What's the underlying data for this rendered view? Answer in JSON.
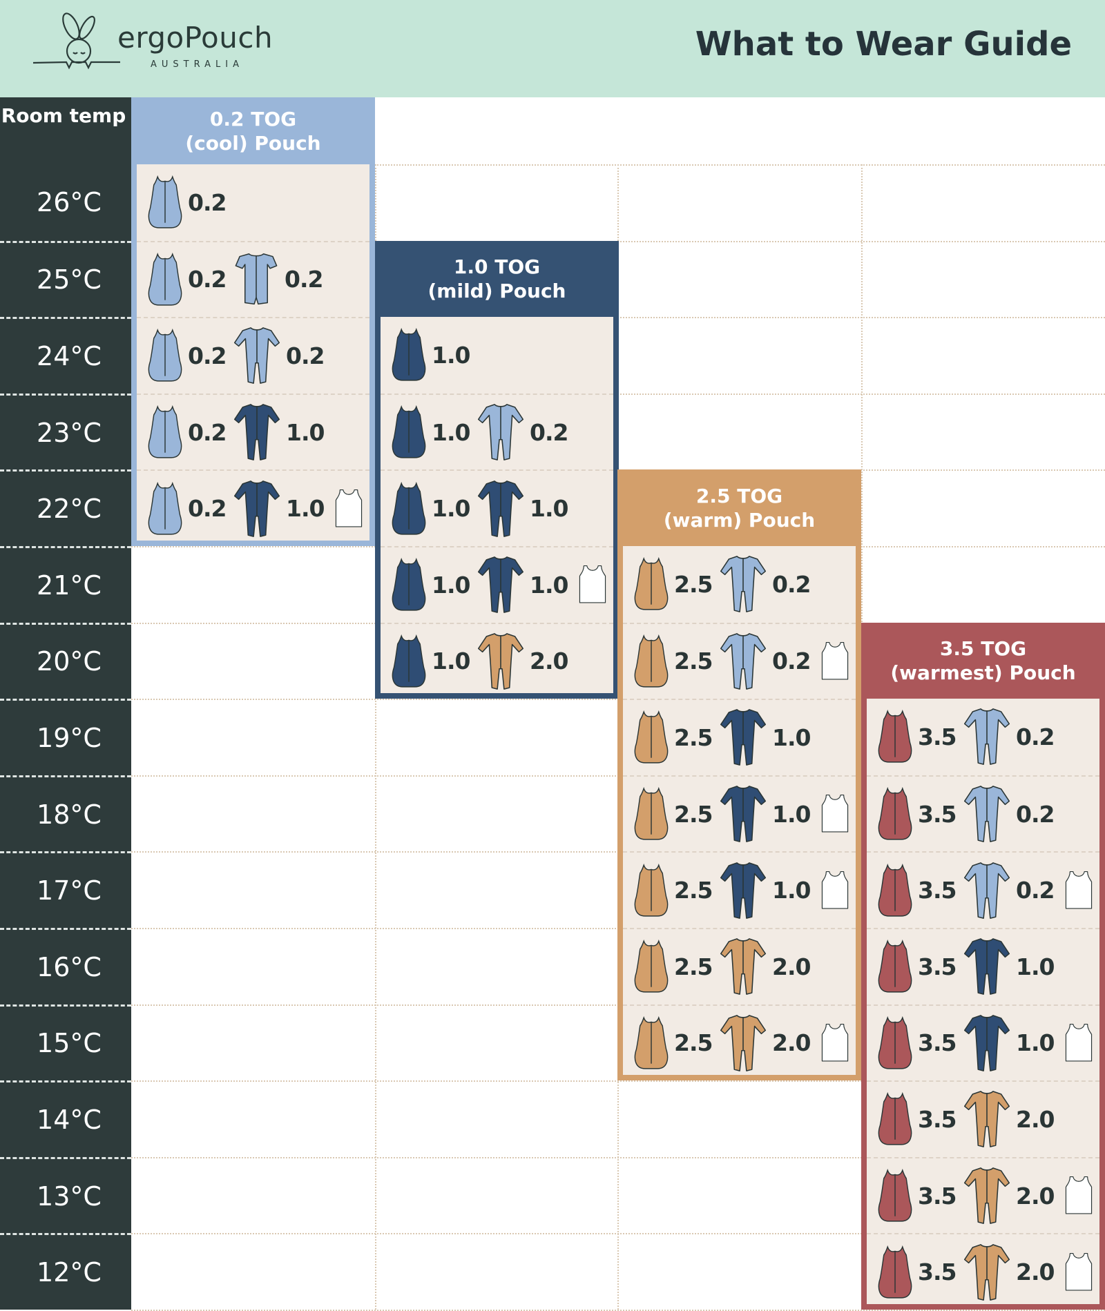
{
  "header": {
    "brand": "ergoPouch",
    "brand_sub": "AUSTRALIA",
    "title": "What to Wear Guide",
    "background": "#c5e6d8"
  },
  "temp_column": {
    "heading": "Room temp",
    "temps": [
      "26°C",
      "25°C",
      "24°C",
      "23°C",
      "22°C",
      "21°C",
      "20°C",
      "19°C",
      "18°C",
      "17°C",
      "16°C",
      "15°C",
      "14°C",
      "13°C",
      "12°C"
    ]
  },
  "colors": {
    "blue": "#9ab6d9",
    "navy": "#2f4d74",
    "tan": "#d39f6b",
    "red": "#ab575a",
    "white": "#ffffff",
    "cool_card": "#9ab6d9",
    "mild_card": "#355273",
    "warm_card": "#d39f6b",
    "warmest_card": "#ab575a"
  },
  "cards": [
    {
      "title_line1": "0.2 TOG",
      "title_line2": "(cool) Pouch",
      "color": "cool_card",
      "rows": [
        {
          "temp": "26°C",
          "items": [
            {
              "icon": "sleep-pouch-icon",
              "color": "blue",
              "tog": "0.2"
            }
          ]
        },
        {
          "temp": "25°C",
          "items": [
            {
              "icon": "sleep-pouch-icon",
              "color": "blue",
              "tog": "0.2"
            },
            {
              "icon": "short-romper-icon",
              "color": "blue",
              "tog": "0.2"
            }
          ]
        },
        {
          "temp": "24°C",
          "items": [
            {
              "icon": "sleep-pouch-icon",
              "color": "blue",
              "tog": "0.2"
            },
            {
              "icon": "sleep-suit-icon",
              "color": "blue",
              "tog": "0.2"
            }
          ]
        },
        {
          "temp": "23°C",
          "items": [
            {
              "icon": "sleep-pouch-icon",
              "color": "blue",
              "tog": "0.2"
            },
            {
              "icon": "sleep-suit-icon",
              "color": "navy",
              "tog": "1.0"
            }
          ]
        },
        {
          "temp": "22°C",
          "items": [
            {
              "icon": "sleep-pouch-icon",
              "color": "blue",
              "tog": "0.2"
            },
            {
              "icon": "sleep-suit-icon",
              "color": "navy",
              "tog": "1.0"
            },
            {
              "icon": "singlet-icon",
              "color": "white"
            }
          ]
        }
      ]
    },
    {
      "title_line1": "1.0 TOG",
      "title_line2": "(mild) Pouch",
      "color": "mild_card",
      "rows": [
        {
          "temp": "24°C",
          "items": [
            {
              "icon": "sleep-pouch-icon",
              "color": "navy",
              "tog": "1.0"
            }
          ]
        },
        {
          "temp": "23°C",
          "items": [
            {
              "icon": "sleep-pouch-icon",
              "color": "navy",
              "tog": "1.0"
            },
            {
              "icon": "sleep-suit-icon",
              "color": "blue",
              "tog": "0.2"
            }
          ]
        },
        {
          "temp": "22°C",
          "items": [
            {
              "icon": "sleep-pouch-icon",
              "color": "navy",
              "tog": "1.0"
            },
            {
              "icon": "sleep-suit-icon",
              "color": "navy",
              "tog": "1.0"
            }
          ]
        },
        {
          "temp": "21°C",
          "items": [
            {
              "icon": "sleep-pouch-icon",
              "color": "navy",
              "tog": "1.0"
            },
            {
              "icon": "sleep-suit-icon",
              "color": "navy",
              "tog": "1.0"
            },
            {
              "icon": "singlet-icon",
              "color": "white"
            }
          ]
        },
        {
          "temp": "20°C",
          "items": [
            {
              "icon": "sleep-pouch-icon",
              "color": "navy",
              "tog": "1.0"
            },
            {
              "icon": "sleep-suit-icon",
              "color": "tan",
              "tog": "2.0"
            }
          ]
        }
      ]
    },
    {
      "title_line1": "2.5 TOG",
      "title_line2": "(warm) Pouch",
      "color": "warm_card",
      "rows": [
        {
          "temp": "21°C",
          "items": [
            {
              "icon": "sleep-pouch-icon",
              "color": "tan",
              "tog": "2.5"
            },
            {
              "icon": "sleep-suit-icon",
              "color": "blue",
              "tog": "0.2"
            }
          ]
        },
        {
          "temp": "20°C",
          "items": [
            {
              "icon": "sleep-pouch-icon",
              "color": "tan",
              "tog": "2.5"
            },
            {
              "icon": "sleep-suit-icon",
              "color": "blue",
              "tog": "0.2"
            },
            {
              "icon": "singlet-icon",
              "color": "white"
            }
          ]
        },
        {
          "temp": "19°C",
          "items": [
            {
              "icon": "sleep-pouch-icon",
              "color": "tan",
              "tog": "2.5"
            },
            {
              "icon": "sleep-suit-icon",
              "color": "navy",
              "tog": "1.0"
            }
          ]
        },
        {
          "temp": "18°C",
          "items": [
            {
              "icon": "sleep-pouch-icon",
              "color": "tan",
              "tog": "2.5"
            },
            {
              "icon": "sleep-suit-icon",
              "color": "navy",
              "tog": "1.0"
            },
            {
              "icon": "singlet-icon",
              "color": "white"
            }
          ]
        },
        {
          "temp": "17°C",
          "items": [
            {
              "icon": "sleep-pouch-icon",
              "color": "tan",
              "tog": "2.5"
            },
            {
              "icon": "sleep-suit-icon",
              "color": "navy",
              "tog": "1.0"
            },
            {
              "icon": "singlet-icon",
              "color": "white"
            }
          ]
        },
        {
          "temp": "16°C",
          "items": [
            {
              "icon": "sleep-pouch-icon",
              "color": "tan",
              "tog": "2.5"
            },
            {
              "icon": "sleep-suit-icon",
              "color": "tan",
              "tog": "2.0"
            }
          ]
        },
        {
          "temp": "15°C",
          "items": [
            {
              "icon": "sleep-pouch-icon",
              "color": "tan",
              "tog": "2.5"
            },
            {
              "icon": "sleep-suit-icon",
              "color": "tan",
              "tog": "2.0"
            },
            {
              "icon": "singlet-icon",
              "color": "white"
            }
          ]
        }
      ]
    },
    {
      "title_line1": "3.5 TOG",
      "title_line2": "(warmest) Pouch",
      "color": "warmest_card",
      "rows": [
        {
          "temp": "19°C",
          "items": [
            {
              "icon": "sleep-pouch-icon",
              "color": "red",
              "tog": "3.5"
            },
            {
              "icon": "sleep-suit-icon",
              "color": "blue",
              "tog": "0.2"
            }
          ]
        },
        {
          "temp": "18°C",
          "items": [
            {
              "icon": "sleep-pouch-icon",
              "color": "red",
              "tog": "3.5"
            },
            {
              "icon": "sleep-suit-icon",
              "color": "blue",
              "tog": "0.2"
            }
          ]
        },
        {
          "temp": "17°C",
          "items": [
            {
              "icon": "sleep-pouch-icon",
              "color": "red",
              "tog": "3.5"
            },
            {
              "icon": "sleep-suit-icon",
              "color": "blue",
              "tog": "0.2"
            },
            {
              "icon": "singlet-icon",
              "color": "white"
            }
          ]
        },
        {
          "temp": "16°C",
          "items": [
            {
              "icon": "sleep-pouch-icon",
              "color": "red",
              "tog": "3.5"
            },
            {
              "icon": "sleep-suit-icon",
              "color": "navy",
              "tog": "1.0"
            }
          ]
        },
        {
          "temp": "15°C",
          "items": [
            {
              "icon": "sleep-pouch-icon",
              "color": "red",
              "tog": "3.5"
            },
            {
              "icon": "sleep-suit-icon",
              "color": "navy",
              "tog": "1.0"
            },
            {
              "icon": "singlet-icon",
              "color": "white"
            }
          ]
        },
        {
          "temp": "14°C",
          "items": [
            {
              "icon": "sleep-pouch-icon",
              "color": "red",
              "tog": "3.5"
            },
            {
              "icon": "sleep-suit-icon",
              "color": "tan",
              "tog": "2.0"
            }
          ]
        },
        {
          "temp": "13°C",
          "items": [
            {
              "icon": "sleep-pouch-icon",
              "color": "red",
              "tog": "3.5"
            },
            {
              "icon": "sleep-suit-icon",
              "color": "tan",
              "tog": "2.0"
            },
            {
              "icon": "singlet-icon",
              "color": "white"
            }
          ]
        },
        {
          "temp": "12°C",
          "items": [
            {
              "icon": "sleep-pouch-icon",
              "color": "red",
              "tog": "3.5"
            },
            {
              "icon": "sleep-suit-icon",
              "color": "tan",
              "tog": "2.0"
            },
            {
              "icon": "singlet-icon",
              "color": "white"
            }
          ]
        }
      ]
    }
  ]
}
